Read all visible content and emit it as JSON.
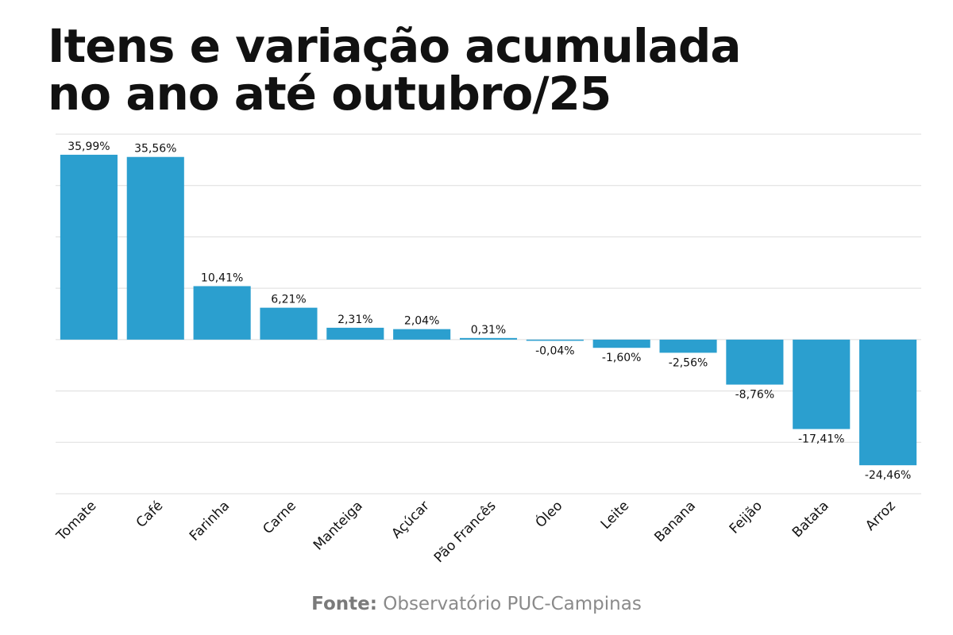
{
  "title": {
    "line1": "Itens e variação acumulada",
    "line2": "no ano até outubro/25"
  },
  "source": {
    "label": "Fonte:",
    "text": "Observatório PUC-Campinas"
  },
  "colors": {
    "bar": "#2b9fcf",
    "grid": "#dddddd",
    "text": "#111111",
    "source": "#8a8a8a"
  },
  "chart_data": {
    "type": "bar",
    "categories": [
      "Tomate",
      "Café",
      "Farinha",
      "Carne",
      "Manteiga",
      "Açúcar",
      "Pão Francês",
      "Óleo",
      "Leite",
      "Banana",
      "Feijão",
      "Batata",
      "Arroz"
    ],
    "values": [
      35.99,
      35.56,
      10.41,
      6.21,
      2.31,
      2.04,
      0.31,
      -0.04,
      -1.6,
      -2.56,
      -8.76,
      -17.41,
      -24.46
    ],
    "labels": [
      "35,99%",
      "35,56%",
      "10,41%",
      "6,21%",
      "2,31%",
      "2,04%",
      "0,31%",
      "-0,04%",
      "-1,60%",
      "-2,56%",
      "-8,76%",
      "-17,41%",
      "-24,46%"
    ],
    "ylim": [
      -30,
      40
    ],
    "grid": true,
    "legend": "none",
    "xlabel": "",
    "ylabel": ""
  }
}
